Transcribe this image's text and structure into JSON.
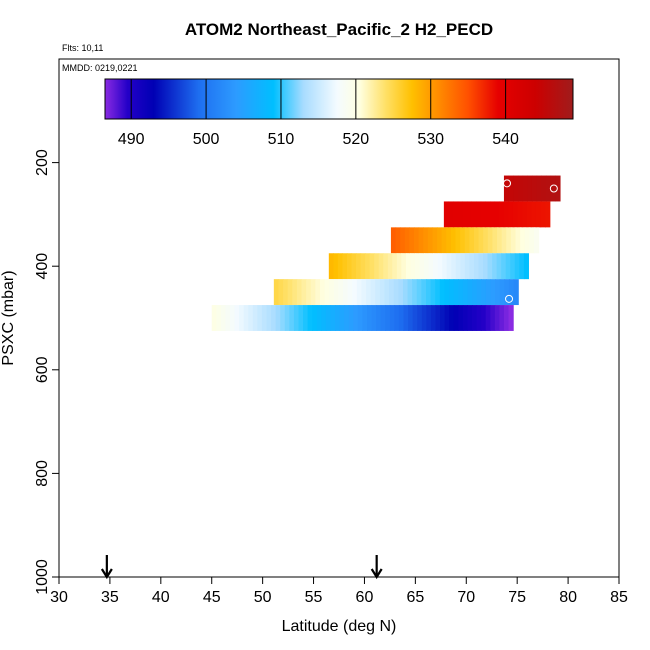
{
  "chart_data": {
    "type": "heatmap",
    "title": "ATOM2 Northeast_Pacific_2 H2_PECD",
    "flights_text": "Flts: 10,11",
    "mmdd_text": "MMDD: 0219,0221",
    "xlabel": "Latitude (deg N)",
    "ylabel": "PSXC (mbar)",
    "xlim": [
      30,
      85
    ],
    "ylim": [
      1000,
      0
    ],
    "xticks": [
      30,
      35,
      40,
      45,
      50,
      55,
      60,
      65,
      70,
      75,
      80,
      85
    ],
    "yticks": [
      200,
      400,
      600,
      800,
      1000
    ],
    "arrows_at_latitude": [
      34.7,
      61.2
    ],
    "colorbar": {
      "min": 486.5,
      "max": 549.0,
      "tick_values": [
        490,
        500,
        510,
        520,
        530,
        540
      ],
      "tick_labels": [
        "490",
        "500",
        "510",
        "520",
        "530",
        "540"
      ],
      "stops": [
        {
          "v": 486.5,
          "c": "#8a2be2"
        },
        {
          "v": 489.5,
          "c": "#2400c8"
        },
        {
          "v": 493.0,
          "c": "#0000b4"
        },
        {
          "v": 499.0,
          "c": "#1e6ef0"
        },
        {
          "v": 504.0,
          "c": "#2d9bff"
        },
        {
          "v": 509.0,
          "c": "#00bfff"
        },
        {
          "v": 513.0,
          "c": "#a8dcff"
        },
        {
          "v": 517.5,
          "c": "#f4fbff"
        },
        {
          "v": 520.5,
          "c": "#ffffe0"
        },
        {
          "v": 524.0,
          "c": "#ffe066"
        },
        {
          "v": 527.5,
          "c": "#ffc000"
        },
        {
          "v": 531.0,
          "c": "#ff8c00"
        },
        {
          "v": 535.0,
          "c": "#ff5000"
        },
        {
          "v": 539.0,
          "c": "#e60000"
        },
        {
          "v": 544.0,
          "c": "#cc0000"
        },
        {
          "v": 549.0,
          "c": "#a01c1c"
        }
      ]
    },
    "rows": [
      {
        "p_top": 225,
        "p_bottom": 275,
        "lat_start": 73.7,
        "lat_end": 79.2,
        "val_start": 545,
        "val_end": 547
      },
      {
        "p_top": 275,
        "p_bottom": 325,
        "lat_start": 67.8,
        "lat_end": 78.2,
        "val_start": 540,
        "val_end": 538
      },
      {
        "p_top": 325,
        "p_bottom": 375,
        "lat_start": 62.6,
        "lat_end": 77.1,
        "val_start": 534,
        "val_end": 519
      },
      {
        "p_top": 375,
        "p_bottom": 425,
        "lat_start": 56.5,
        "lat_end": 76.1,
        "val_start": 528,
        "val_end": 509
      },
      {
        "p_top": 425,
        "p_bottom": 475,
        "lat_start": 51.1,
        "lat_end": 75.1,
        "val_start": 525,
        "val_end": 502
      },
      {
        "p_top": 475,
        "p_bottom": 525,
        "lat_start": 45.0,
        "lat_end": 74.6,
        "val_start": 520,
        "val_end": 486.5
      }
    ],
    "markers": [
      {
        "lat": 74.0,
        "p": 240
      },
      {
        "lat": 78.6,
        "p": 250
      },
      {
        "lat": 74.2,
        "p": 463
      }
    ]
  }
}
